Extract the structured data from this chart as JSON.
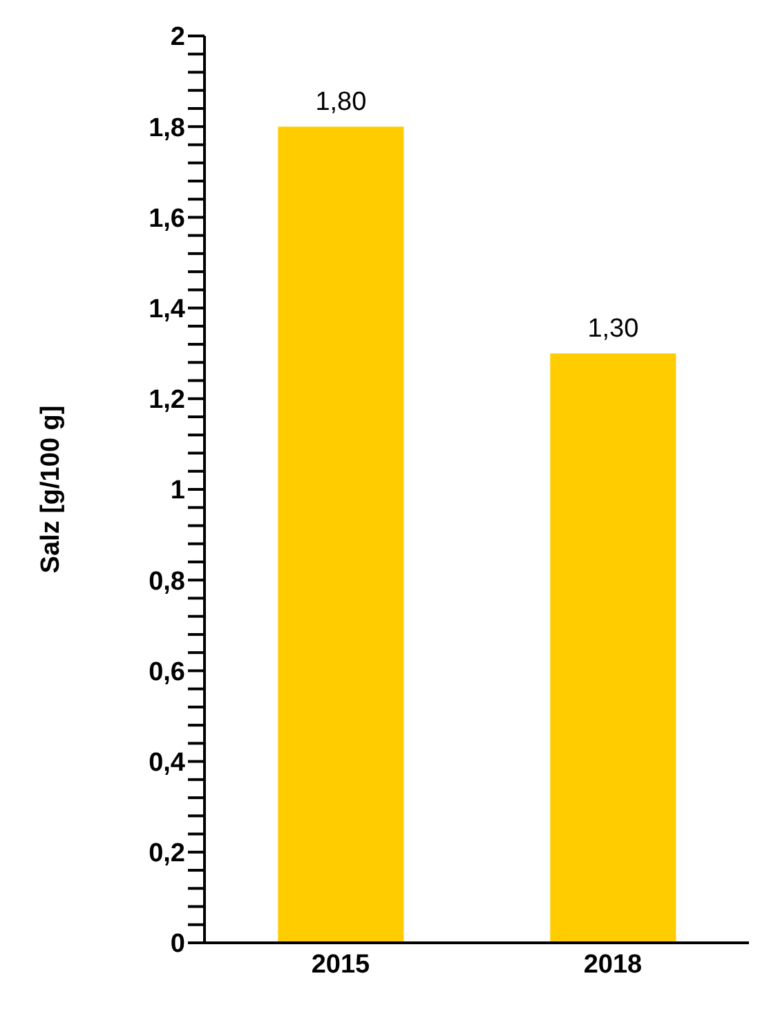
{
  "chart_data": {
    "type": "bar",
    "ylabel": "Salz [g/100 g]",
    "categories": [
      "2015",
      "2018"
    ],
    "series": [
      {
        "color": "#ffcc00",
        "values": [
          1.8,
          1.3
        ],
        "value_labels": [
          "1,80",
          "1,30"
        ]
      }
    ],
    "ylim": [
      0,
      2
    ],
    "yticks": [
      {
        "value": 0,
        "label": "0"
      },
      {
        "value": 0.04,
        "label": null
      },
      {
        "value": 0.08,
        "label": null
      },
      {
        "value": 0.12,
        "label": null
      },
      {
        "value": 0.16,
        "label": null
      },
      {
        "value": 0.2,
        "label": "0,2"
      },
      {
        "value": 0.24,
        "label": null
      },
      {
        "value": 0.28,
        "label": null
      },
      {
        "value": 0.32,
        "label": null
      },
      {
        "value": 0.36,
        "label": null
      },
      {
        "value": 0.4,
        "label": "0,4"
      },
      {
        "value": 0.44,
        "label": null
      },
      {
        "value": 0.48,
        "label": null
      },
      {
        "value": 0.52,
        "label": null
      },
      {
        "value": 0.56,
        "label": null
      },
      {
        "value": 0.6,
        "label": "0,6"
      },
      {
        "value": 0.64,
        "label": null
      },
      {
        "value": 0.68,
        "label": null
      },
      {
        "value": 0.72,
        "label": null
      },
      {
        "value": 0.76,
        "label": null
      },
      {
        "value": 0.8,
        "label": "0,8"
      },
      {
        "value": 0.84,
        "label": null
      },
      {
        "value": 0.88,
        "label": null
      },
      {
        "value": 0.92,
        "label": null
      },
      {
        "value": 0.96,
        "label": null
      },
      {
        "value": 1,
        "label": "1"
      },
      {
        "value": 1.04,
        "label": null
      },
      {
        "value": 1.08,
        "label": null
      },
      {
        "value": 1.12,
        "label": null
      },
      {
        "value": 1.16,
        "label": null
      },
      {
        "value": 1.2,
        "label": "1,2"
      },
      {
        "value": 1.24,
        "label": null
      },
      {
        "value": 1.28,
        "label": null
      },
      {
        "value": 1.32,
        "label": null
      },
      {
        "value": 1.36,
        "label": null
      },
      {
        "value": 1.4,
        "label": "1,4"
      },
      {
        "value": 1.44,
        "label": null
      },
      {
        "value": 1.48,
        "label": null
      },
      {
        "value": 1.52,
        "label": null
      },
      {
        "value": 1.56,
        "label": null
      },
      {
        "value": 1.6,
        "label": "1,6"
      },
      {
        "value": 1.64,
        "label": null
      },
      {
        "value": 1.68,
        "label": null
      },
      {
        "value": 1.72,
        "label": null
      },
      {
        "value": 1.76,
        "label": null
      },
      {
        "value": 1.8,
        "label": "1,8"
      },
      {
        "value": 1.84,
        "label": null
      },
      {
        "value": 1.88,
        "label": null
      },
      {
        "value": 1.92,
        "label": null
      },
      {
        "value": 1.96,
        "label": null
      },
      {
        "value": 2,
        "label": "2"
      }
    ],
    "grid": false,
    "legend": false
  }
}
